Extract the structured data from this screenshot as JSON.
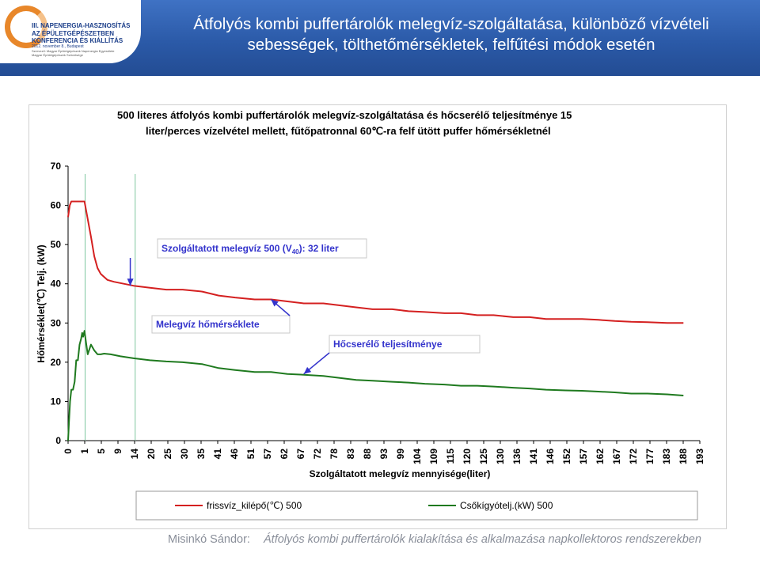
{
  "slide": {
    "title_line1": "Átfolyós kombi puffertárolók melegvíz-szolgáltatása, különböző vízvételi",
    "title_line2": "sebességek, tölthetőmérsékletek, felfűtési módok esetén",
    "footer_author": "Misinkó Sándor:",
    "footer_work": "Átfolyós kombi puffertárolók kialakítása és alkalmazása napkollektoros rendszerekben"
  },
  "logo": {
    "line1": "III. NAPENERGIA-HASZNOSÍTÁS",
    "line2": "AZ ÉPÜLETGÉPÉSZETBEN",
    "line3": "KONFERENCIA ÉS KIÁLLÍTÁS",
    "line4": "2012. november 8., Budapest",
    "line5": "Szervező: Magyar Épületgépészek Napenergia Egyesülete",
    "line6": "Magyar Épületgépészek Szövetsége"
  },
  "colors": {
    "header_blue": "#2b5aa8",
    "series_red": "#d42020",
    "series_green": "#1f7a1f",
    "callout_blue": "#3333cc",
    "marker_line": "#7fc7a0"
  },
  "chart_data": {
    "type": "line",
    "title_line1": "500 literes átfolyós kombi puffertárolók melegvíz-szolgáltatása és hőcserélő teljesítménye 15",
    "title_line2": "liter/perces vízelvétel mellett, fűtőpatronnal 60℃-ra felf ütött puffer hőmérsékletnél",
    "xlabel": "Szolgáltatott melegvíz mennyisége(liter)",
    "ylabel": "Hőmérséklet(℃) Telj. (kW)",
    "ylim": [
      0,
      70
    ],
    "yticks": [
      "0",
      "10",
      "20",
      "30",
      "40",
      "50",
      "60",
      "70"
    ],
    "xlim": [
      0,
      193
    ],
    "xticks": [
      "0",
      "1",
      "5",
      "9",
      "14",
      "20",
      "25",
      "30",
      "35",
      "41",
      "46",
      "51",
      "57",
      "62",
      "67",
      "72",
      "78",
      "83",
      "88",
      "93",
      "99",
      "104",
      "109",
      "115",
      "120",
      "125",
      "130",
      "136",
      "141",
      "146",
      "152",
      "157",
      "162",
      "167",
      "172",
      "177",
      "183",
      "188",
      "193"
    ],
    "vertical_markers": [
      5.2,
      20.5
    ],
    "series": [
      {
        "name": "frissvíz_kilépő(℃) 500",
        "x": [
          0,
          0.5,
          1,
          2,
          3,
          4,
          5,
          7,
          8,
          9,
          10,
          12,
          14,
          17,
          20,
          25,
          30,
          35,
          41,
          46,
          51,
          57,
          62,
          67,
          72,
          78,
          83,
          88,
          93,
          99,
          104,
          109,
          115,
          120,
          125,
          130,
          136,
          141,
          146,
          152,
          157,
          162,
          167,
          172,
          177,
          183,
          188
        ],
        "y": [
          57,
          60,
          61,
          61,
          61,
          61,
          61,
          52,
          47,
          44,
          42.5,
          41,
          40.5,
          40,
          39.5,
          39,
          38.5,
          38.5,
          38,
          37,
          36.5,
          36,
          36,
          35.5,
          35,
          35,
          34.5,
          34,
          33.5,
          33.5,
          33,
          32.8,
          32.5,
          32.5,
          32,
          32,
          31.5,
          31.5,
          31,
          31,
          31,
          30.8,
          30.5,
          30.3,
          30.2,
          30,
          30
        ]
      },
      {
        "name": "Csőkígyótelj.(kW) 500",
        "x": [
          0,
          0.3,
          0.6,
          1,
          1.5,
          2,
          2.5,
          3,
          3.5,
          4,
          4.3,
          4.6,
          5,
          5.5,
          6,
          7,
          8,
          9,
          10,
          11,
          13,
          16,
          20,
          25,
          30,
          35,
          41,
          46,
          51,
          57,
          62,
          67,
          72,
          78,
          83,
          88,
          93,
          99,
          104,
          109,
          115,
          120,
          125,
          130,
          136,
          141,
          146,
          152,
          157,
          162,
          167,
          172,
          177,
          183,
          188
        ],
        "y": [
          0,
          5,
          10,
          13,
          13,
          15,
          20.5,
          20.5,
          24.5,
          26,
          27.5,
          26.5,
          28,
          25,
          22,
          24.5,
          23,
          22,
          22,
          22.2,
          22,
          21.5,
          21,
          20.5,
          20.2,
          20,
          19.5,
          18.5,
          18,
          17.5,
          17.5,
          17,
          16.8,
          16.5,
          16,
          15.5,
          15.3,
          15,
          14.8,
          14.5,
          14.3,
          14,
          14,
          13.8,
          13.5,
          13.3,
          13,
          12.8,
          12.7,
          12.5,
          12.3,
          12,
          12,
          11.8,
          11.5
        ]
      }
    ],
    "annotations": [
      {
        "id": "served",
        "text_pre": "Szolgáltatott melegvíz 500 (V",
        "text_sub": "40",
        "text_post": "): 32 liter",
        "target_x": 19,
        "target_y": 39.5
      },
      {
        "id": "hotwater",
        "text": "Melegvíz hőmérséklete",
        "target_x": 62,
        "target_y": 36
      },
      {
        "id": "exchanger",
        "text": "Hőcserélő teljesítménye",
        "target_x": 72,
        "target_y": 17
      }
    ]
  }
}
